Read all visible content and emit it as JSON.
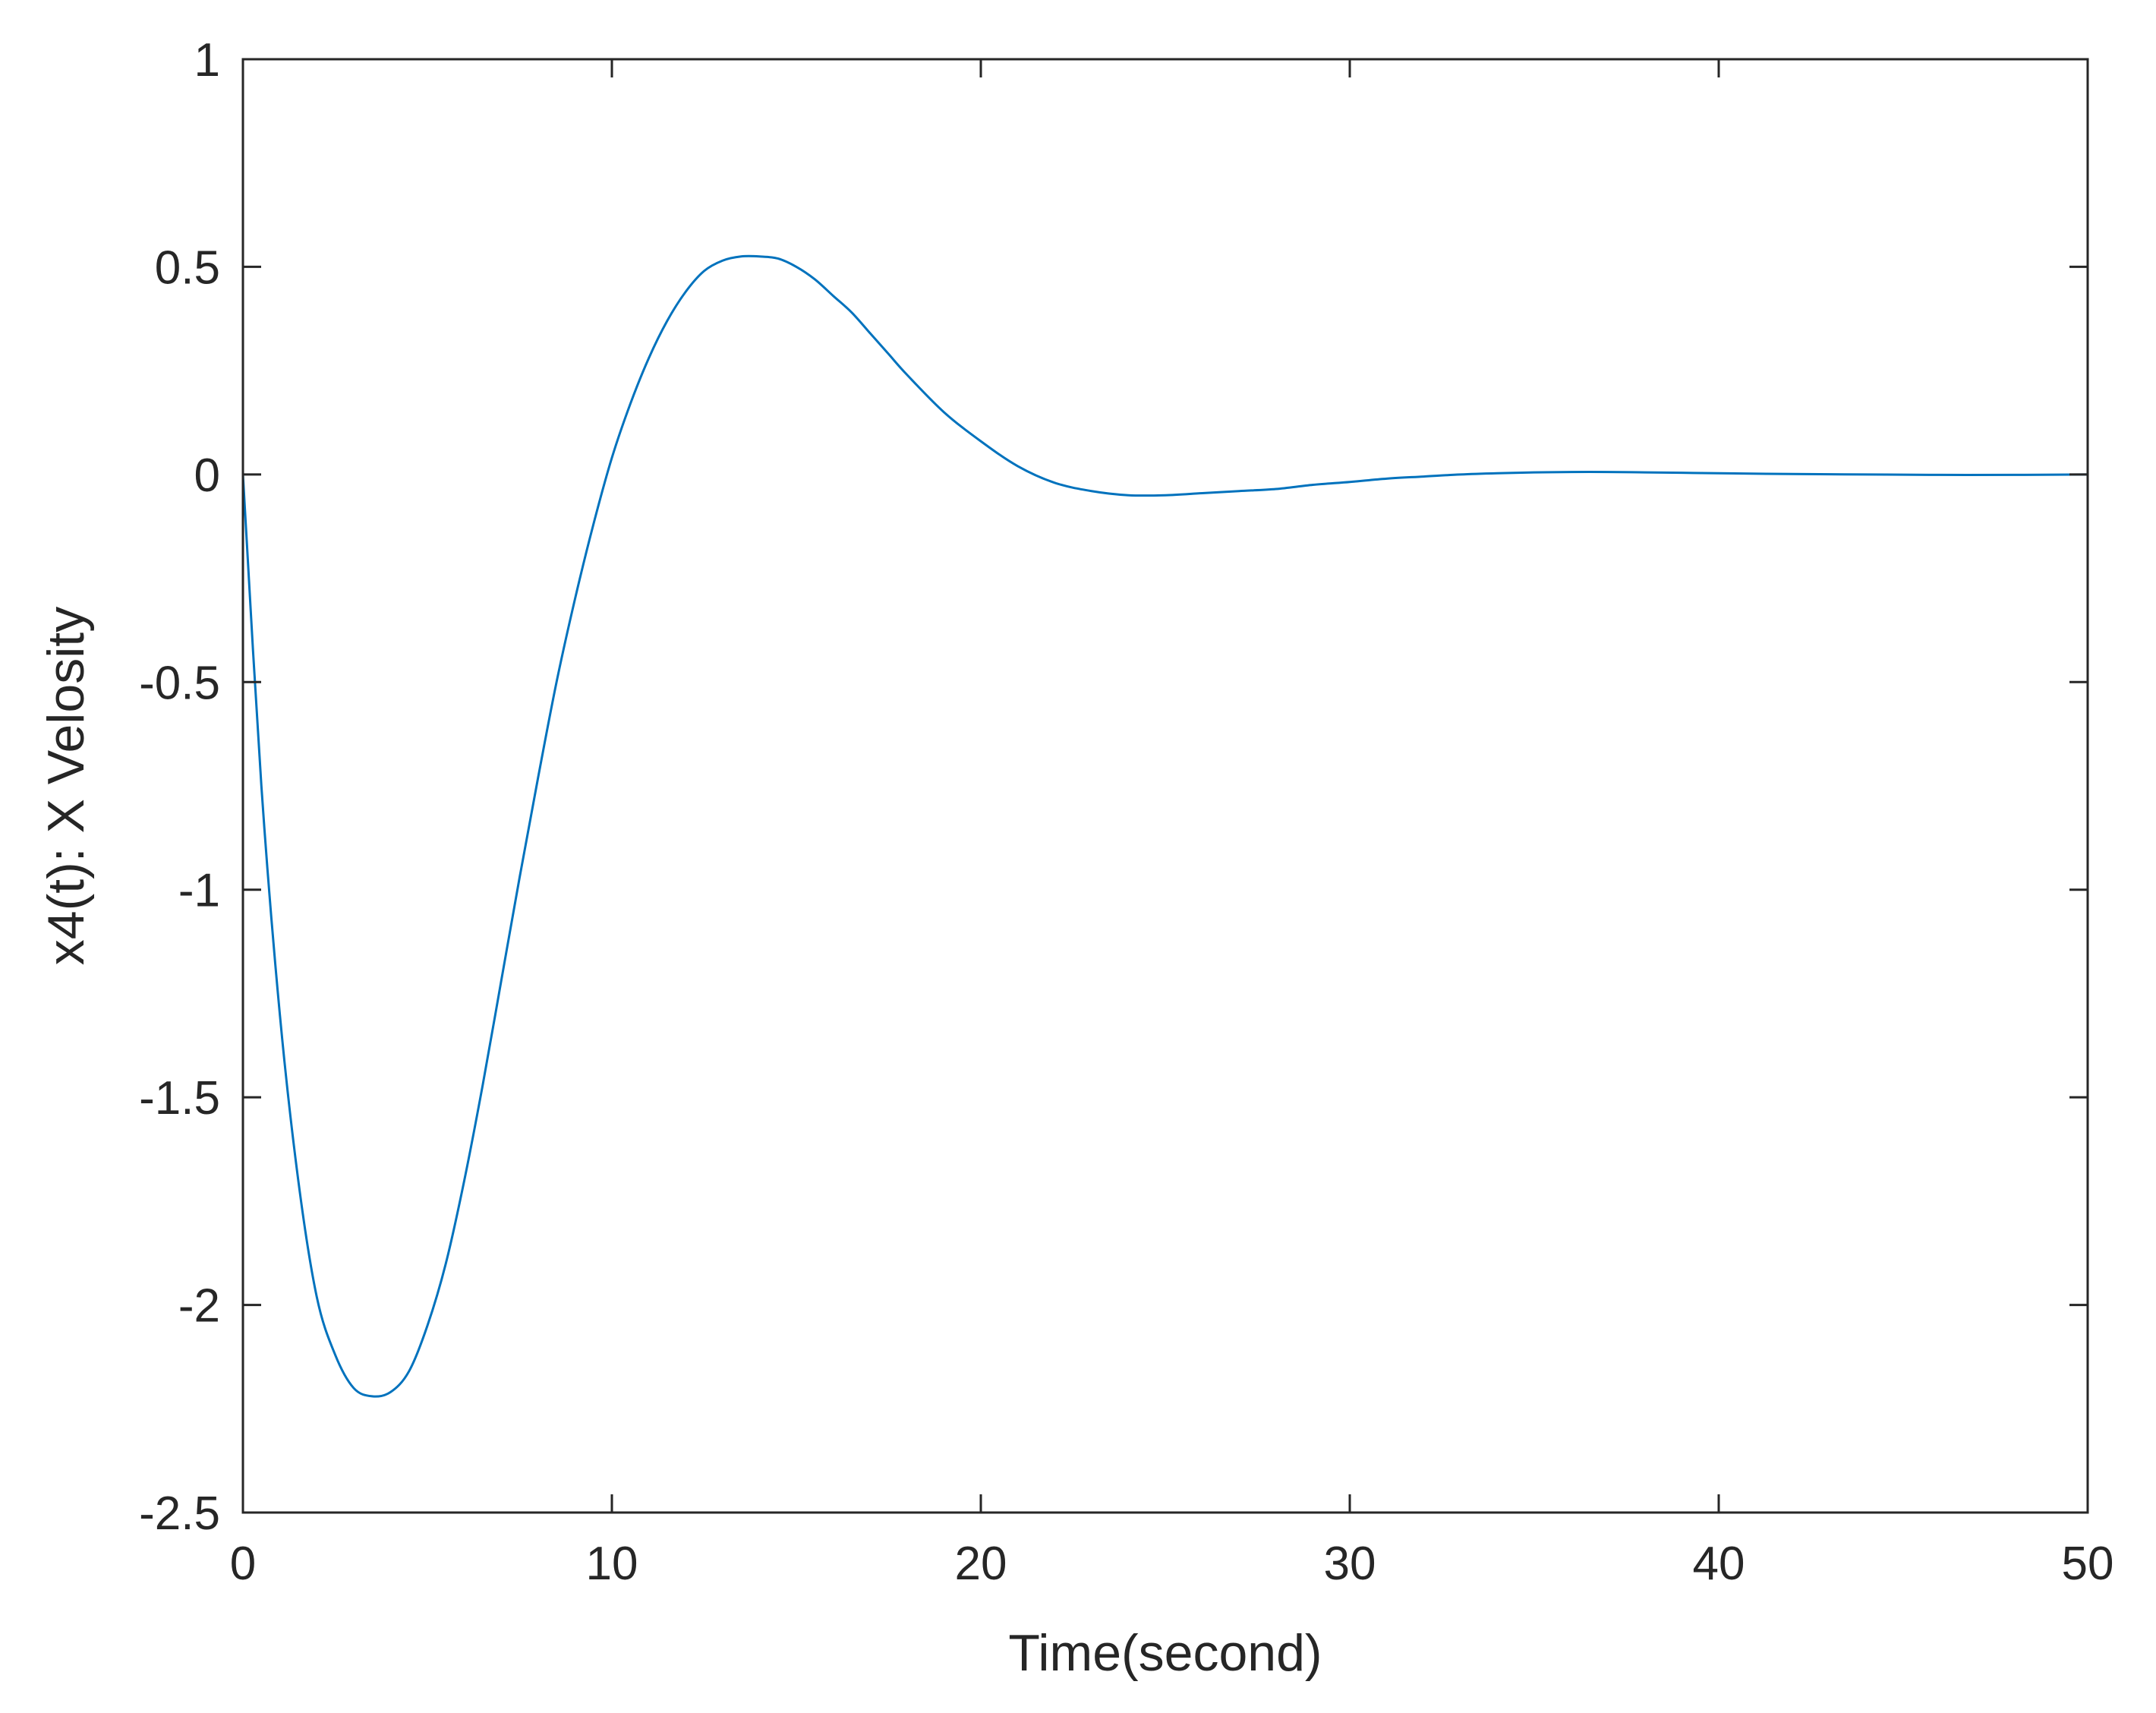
{
  "chart_data": {
    "type": "line",
    "title": "",
    "xlabel": "Time(second)",
    "ylabel": "x4(t): X Velosity",
    "xlim": [
      0,
      50
    ],
    "ylim": [
      -2.5,
      1
    ],
    "xticks": [
      0,
      10,
      20,
      30,
      40,
      50
    ],
    "xtick_labels": [
      "0",
      "10",
      "20",
      "30",
      "40",
      "50"
    ],
    "yticks": [
      -2.5,
      -2,
      -1.5,
      -1,
      -0.5,
      0,
      0.5,
      1
    ],
    "ytick_labels": [
      "-2.5",
      "-2",
      "-1.5",
      "-1",
      "-0.5",
      "0",
      "0.5",
      "1"
    ],
    "grid": false,
    "legend": "none",
    "colors": {
      "line": "#0072BD",
      "axes": "#262626",
      "background": "#ffffff"
    },
    "series": [
      {
        "x": [
          0,
          0.5,
          1,
          1.5,
          2,
          2.5,
          3,
          3.5,
          4,
          4.5,
          5,
          5.5,
          6,
          6.5,
          7,
          7.5,
          8,
          8.5,
          9,
          9.5,
          10,
          10.5,
          11,
          11.5,
          12,
          12.5,
          13,
          13.5,
          14,
          14.5,
          15,
          15.5,
          16,
          16.5,
          17,
          17.5,
          18,
          19,
          20,
          21,
          22,
          23,
          24,
          25,
          26,
          27,
          28,
          29,
          30,
          31,
          32,
          33,
          34,
          35,
          36,
          37,
          38,
          39,
          40,
          42,
          44,
          46,
          48,
          50
        ],
        "y": [
          0,
          -0.75,
          -1.3,
          -1.7,
          -1.98,
          -2.12,
          -2.2,
          -2.22,
          -2.21,
          -2.16,
          -2.05,
          -1.9,
          -1.7,
          -1.47,
          -1.22,
          -0.97,
          -0.73,
          -0.5,
          -0.3,
          -0.12,
          0.04,
          0.17,
          0.28,
          0.37,
          0.44,
          0.49,
          0.515,
          0.525,
          0.525,
          0.52,
          0.5,
          0.47,
          0.43,
          0.39,
          0.34,
          0.29,
          0.24,
          0.15,
          0.08,
          0.02,
          -0.02,
          -0.04,
          -0.05,
          -0.05,
          -0.045,
          -0.04,
          -0.035,
          -0.025,
          -0.018,
          -0.01,
          -0.005,
          0,
          0.003,
          0.005,
          0.006,
          0.006,
          0.005,
          0.004,
          0.003,
          0.001,
          0,
          -0.001,
          -0.001,
          0
        ]
      }
    ]
  }
}
